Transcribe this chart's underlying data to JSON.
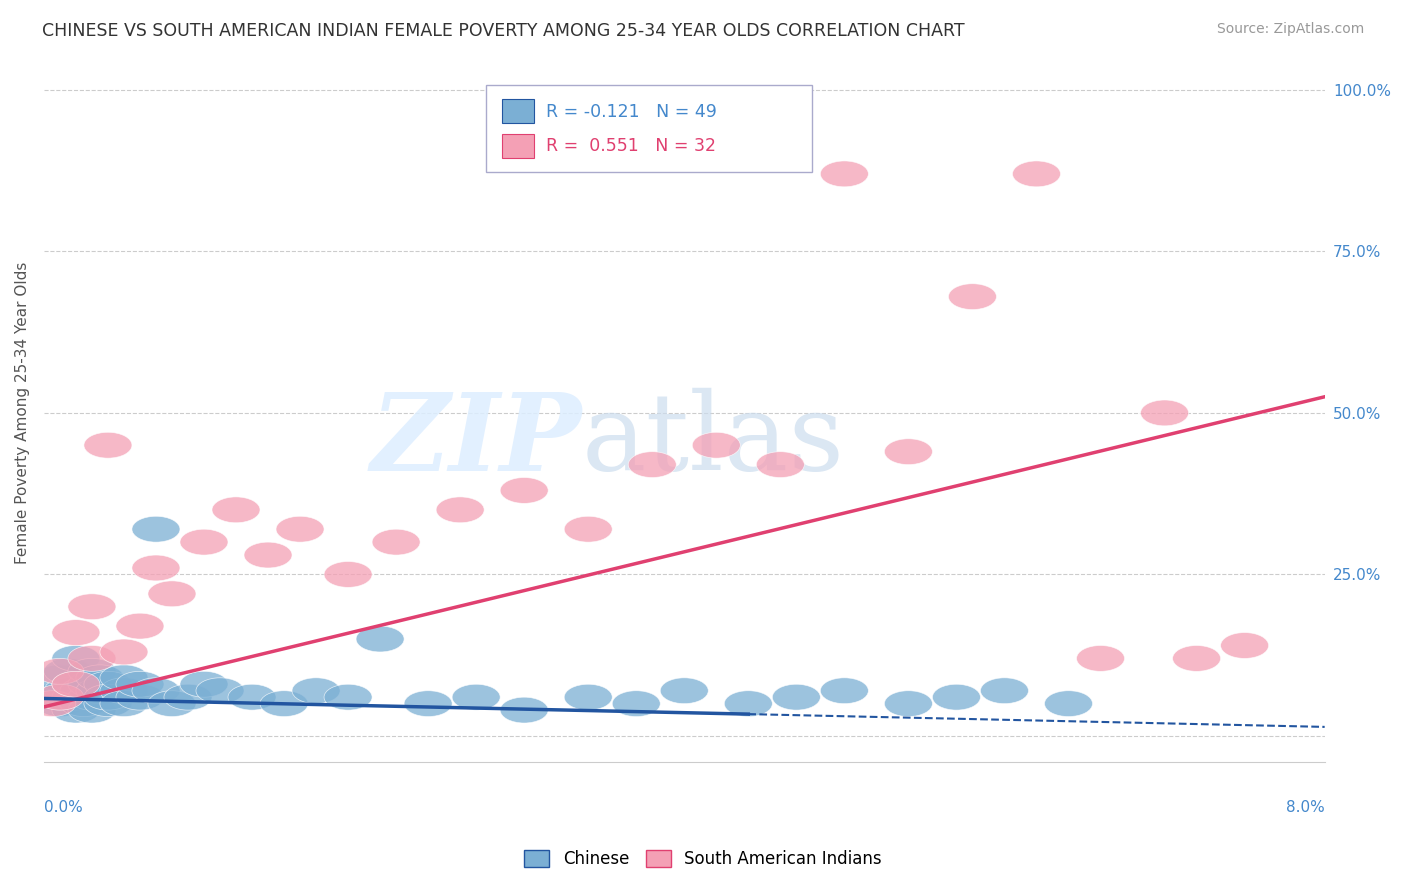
{
  "title": "CHINESE VS SOUTH AMERICAN INDIAN FEMALE POVERTY AMONG 25-34 YEAR OLDS CORRELATION CHART",
  "source": "Source: ZipAtlas.com",
  "ylabel": "Female Poverty Among 25-34 Year Olds",
  "xlim": [
    0.0,
    0.08
  ],
  "ylim": [
    -0.04,
    1.04
  ],
  "chinese_R": -0.121,
  "chinese_N": 49,
  "sa_indian_R": 0.551,
  "sa_indian_N": 32,
  "chinese_color": "#7BAFD4",
  "sa_indian_color": "#F4A0B5",
  "chinese_line_color": "#2255A0",
  "sa_indian_line_color": "#E04070",
  "background_color": "#FFFFFF",
  "ch_line_intercept": 0.058,
  "ch_line_slope": -0.55,
  "sa_line_intercept": 0.045,
  "sa_line_slope": 6.0,
  "ch_x": [
    0.0005,
    0.001,
    0.001,
    0.0015,
    0.0015,
    0.002,
    0.002,
    0.002,
    0.002,
    0.0025,
    0.0025,
    0.003,
    0.003,
    0.003,
    0.003,
    0.0035,
    0.0035,
    0.004,
    0.004,
    0.004,
    0.005,
    0.005,
    0.005,
    0.006,
    0.006,
    0.007,
    0.007,
    0.008,
    0.009,
    0.01,
    0.011,
    0.013,
    0.015,
    0.017,
    0.019,
    0.021,
    0.024,
    0.027,
    0.03,
    0.034,
    0.037,
    0.04,
    0.044,
    0.047,
    0.05,
    0.054,
    0.057,
    0.06,
    0.064
  ],
  "ch_y": [
    0.06,
    0.05,
    0.09,
    0.07,
    0.1,
    0.04,
    0.06,
    0.08,
    0.12,
    0.05,
    0.07,
    0.06,
    0.08,
    0.04,
    0.1,
    0.07,
    0.09,
    0.05,
    0.08,
    0.06,
    0.07,
    0.05,
    0.09,
    0.06,
    0.08,
    0.07,
    0.32,
    0.05,
    0.06,
    0.08,
    0.07,
    0.06,
    0.05,
    0.07,
    0.06,
    0.15,
    0.05,
    0.06,
    0.04,
    0.06,
    0.05,
    0.07,
    0.05,
    0.06,
    0.07,
    0.05,
    0.06,
    0.07,
    0.05
  ],
  "sa_x": [
    0.0005,
    0.001,
    0.001,
    0.002,
    0.002,
    0.003,
    0.003,
    0.004,
    0.005,
    0.006,
    0.007,
    0.008,
    0.01,
    0.012,
    0.014,
    0.016,
    0.019,
    0.022,
    0.026,
    0.03,
    0.034,
    0.038,
    0.042,
    0.046,
    0.05,
    0.054,
    0.058,
    0.062,
    0.066,
    0.07,
    0.072,
    0.075
  ],
  "sa_y": [
    0.05,
    0.06,
    0.1,
    0.08,
    0.16,
    0.12,
    0.2,
    0.45,
    0.13,
    0.17,
    0.26,
    0.22,
    0.3,
    0.35,
    0.28,
    0.32,
    0.25,
    0.3,
    0.35,
    0.38,
    0.32,
    0.42,
    0.45,
    0.42,
    0.87,
    0.44,
    0.68,
    0.87,
    0.12,
    0.5,
    0.12,
    0.14
  ]
}
